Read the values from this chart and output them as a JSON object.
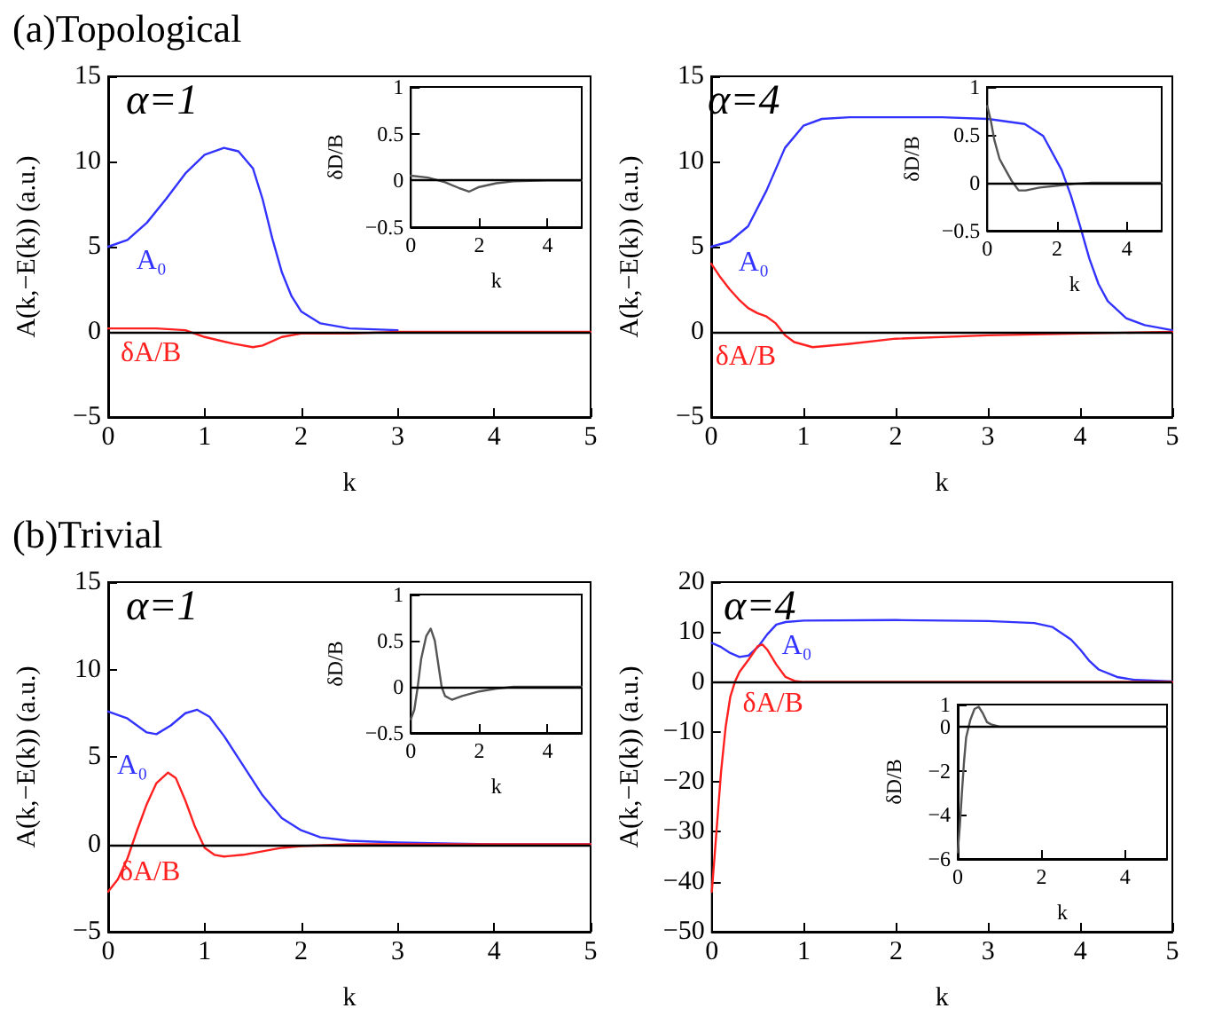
{
  "chart_data": [
    {
      "type": "line",
      "title": "(a)Topological",
      "xlabel": "k",
      "ylabel": "A(k,−E(k)) (a.u.)",
      "annotations": [
        "α=1"
      ],
      "xlim": [
        0,
        5
      ],
      "xticks": [
        0,
        1,
        2,
        3,
        4,
        5
      ],
      "ylim": [
        -5,
        15
      ],
      "yticks": [
        {
          "value": -5,
          "label": "−5"
        },
        0,
        5,
        10,
        15
      ],
      "marker": "none",
      "line_style": "solid",
      "ref_lines": [
        {
          "axis": "y",
          "value": 0,
          "color": "#000000"
        }
      ],
      "series": [
        {
          "name": "A₀",
          "color": "#3333ff",
          "x": [
            0,
            0.2,
            0.4,
            0.6,
            0.8,
            1.0,
            1.2,
            1.35,
            1.5,
            1.6,
            1.7,
            1.8,
            1.9,
            2.0,
            2.2,
            2.5,
            3
          ],
          "values": [
            5.0,
            5.4,
            6.4,
            7.8,
            9.3,
            10.4,
            10.8,
            10.6,
            9.6,
            7.8,
            5.5,
            3.5,
            2.1,
            1.2,
            0.5,
            0.2,
            0.1
          ]
        },
        {
          "name": "δA/B",
          "color": "#ff2020",
          "x": [
            0,
            0.5,
            0.8,
            1.0,
            1.3,
            1.5,
            1.6,
            1.8,
            2,
            2.5,
            3,
            5
          ],
          "values": [
            0.2,
            0.2,
            0.1,
            -0.3,
            -0.7,
            -0.9,
            -0.8,
            -0.3,
            -0.1,
            -0.1,
            0,
            0
          ]
        }
      ]
    },
    {
      "type": "line",
      "xlabel": "k",
      "ylabel": "δD/B",
      "xlim": [
        0,
        5
      ],
      "xticks": [
        0,
        2,
        4
      ],
      "ylim": [
        -0.5,
        1
      ],
      "yticks": [
        {
          "value": -0.5,
          "label": "−0.5"
        },
        0,
        0.5,
        1
      ],
      "marker": "none",
      "line_style": "solid",
      "ref_lines": [
        {
          "axis": "y",
          "value": 0,
          "color": "#000000"
        }
      ],
      "series": [
        {
          "color": "#555555",
          "x": [
            0,
            0.5,
            1.0,
            1.4,
            1.7,
            2.0,
            2.5,
            3,
            4,
            5
          ],
          "values": [
            0.05,
            0.03,
            -0.02,
            -0.08,
            -0.12,
            -0.07,
            -0.03,
            -0.01,
            0,
            0
          ]
        }
      ]
    },
    {
      "type": "line",
      "xlabel": "k",
      "ylabel": "A(k,−E(k)) (a.u.)",
      "annotations": [
        "α=4"
      ],
      "xlim": [
        0,
        5
      ],
      "xticks": [
        0,
        1,
        2,
        3,
        4,
        5
      ],
      "ylim": [
        -5,
        15
      ],
      "yticks": [
        {
          "value": -5,
          "label": "−5"
        },
        0,
        5,
        10,
        15
      ],
      "marker": "none",
      "line_style": "solid",
      "ref_lines": [
        {
          "axis": "y",
          "value": 0,
          "color": "#000000"
        }
      ],
      "series": [
        {
          "name": "A₀",
          "color": "#3333ff",
          "x": [
            0,
            0.2,
            0.4,
            0.6,
            0.8,
            1.0,
            1.2,
            1.5,
            2,
            2.5,
            3,
            3.4,
            3.6,
            3.8,
            3.9,
            4.0,
            4.1,
            4.2,
            4.3,
            4.5,
            4.7,
            5
          ],
          "values": [
            5.0,
            5.3,
            6.2,
            8.3,
            10.8,
            12.1,
            12.5,
            12.6,
            12.6,
            12.6,
            12.5,
            12.2,
            11.5,
            9.5,
            8.0,
            6.2,
            4.3,
            2.8,
            1.8,
            0.8,
            0.4,
            0.1
          ]
        },
        {
          "name": "δA/B",
          "color": "#ff2020",
          "x": [
            0,
            0.1,
            0.2,
            0.3,
            0.4,
            0.5,
            0.6,
            0.7,
            0.8,
            0.9,
            1.1,
            1.5,
            2,
            3,
            4,
            5
          ],
          "values": [
            4.0,
            3.2,
            2.5,
            1.9,
            1.4,
            1.1,
            0.9,
            0.5,
            -0.2,
            -0.6,
            -0.9,
            -0.7,
            -0.4,
            -0.2,
            -0.1,
            0
          ]
        }
      ]
    },
    {
      "type": "line",
      "xlabel": "k",
      "ylabel": "δD/B",
      "xlim": [
        0,
        5
      ],
      "xticks": [
        0,
        2,
        4
      ],
      "ylim": [
        -0.5,
        1
      ],
      "yticks": [
        {
          "value": -0.5,
          "label": "−0.5"
        },
        0,
        0.5,
        1
      ],
      "marker": "none",
      "line_style": "solid",
      "ref_lines": [
        {
          "axis": "y",
          "value": 0,
          "color": "#000000"
        }
      ],
      "series": [
        {
          "color": "#555555",
          "x": [
            0,
            0.1,
            0.2,
            0.35,
            0.5,
            0.7,
            0.9,
            1.1,
            1.5,
            2,
            2.5,
            3,
            5
          ],
          "values": [
            0.8,
            0.65,
            0.45,
            0.25,
            0.15,
            0.02,
            -0.08,
            -0.08,
            -0.05,
            -0.03,
            -0.01,
            0,
            0
          ]
        }
      ]
    },
    {
      "type": "line",
      "title": "(b)Trivial",
      "xlabel": "k",
      "ylabel": "A(k,−E(k)) (a.u.)",
      "annotations": [
        "α=1"
      ],
      "xlim": [
        0,
        5
      ],
      "xticks": [
        0,
        1,
        2,
        3,
        4,
        5
      ],
      "ylim": [
        -5,
        15
      ],
      "yticks": [
        {
          "value": -5,
          "label": "−5"
        },
        0,
        5,
        10,
        15
      ],
      "marker": "none",
      "line_style": "solid",
      "ref_lines": [
        {
          "axis": "y",
          "value": 0,
          "color": "#000000"
        }
      ],
      "series": [
        {
          "name": "A₀",
          "color": "#3333ff",
          "x": [
            0,
            0.2,
            0.4,
            0.5,
            0.65,
            0.8,
            0.92,
            1.05,
            1.2,
            1.4,
            1.6,
            1.8,
            2.0,
            2.2,
            2.5,
            3,
            4,
            5
          ],
          "values": [
            7.6,
            7.2,
            6.4,
            6.3,
            6.8,
            7.5,
            7.7,
            7.3,
            6.2,
            4.5,
            2.8,
            1.5,
            0.8,
            0.4,
            0.2,
            0.1,
            0,
            0
          ]
        },
        {
          "name": "δA/B",
          "color": "#ff2020",
          "x": [
            0,
            0.1,
            0.2,
            0.3,
            0.4,
            0.5,
            0.62,
            0.7,
            0.8,
            0.9,
            1.0,
            1.1,
            1.2,
            1.4,
            1.6,
            1.8,
            2.0,
            2.5,
            5
          ],
          "values": [
            -2.7,
            -2.0,
            -0.8,
            0.8,
            2.3,
            3.5,
            4.1,
            3.8,
            2.5,
            1.0,
            -0.2,
            -0.6,
            -0.7,
            -0.6,
            -0.4,
            -0.2,
            -0.1,
            0,
            0
          ]
        }
      ]
    },
    {
      "type": "line",
      "xlabel": "k",
      "ylabel": "δD/B",
      "xlim": [
        0,
        5
      ],
      "xticks": [
        0,
        2,
        4
      ],
      "ylim": [
        -0.5,
        1
      ],
      "yticks": [
        {
          "value": -0.5,
          "label": "−0.5"
        },
        0,
        0.5,
        1
      ],
      "marker": "none",
      "line_style": "solid",
      "ref_lines": [
        {
          "axis": "y",
          "value": 0,
          "color": "#000000"
        }
      ],
      "series": [
        {
          "color": "#555555",
          "x": [
            0,
            0.1,
            0.2,
            0.3,
            0.45,
            0.58,
            0.7,
            0.8,
            0.9,
            1.0,
            1.2,
            1.5,
            2,
            2.5,
            3,
            5
          ],
          "values": [
            -0.35,
            -0.25,
            0.0,
            0.3,
            0.55,
            0.63,
            0.5,
            0.25,
            0.0,
            -0.1,
            -0.14,
            -0.1,
            -0.05,
            -0.02,
            0,
            0
          ]
        }
      ]
    },
    {
      "type": "line",
      "xlabel": "k",
      "ylabel": "A(k,−E(k)) (a.u.)",
      "annotations": [
        "α=4"
      ],
      "xlim": [
        0,
        5
      ],
      "xticks": [
        0,
        1,
        2,
        3,
        4,
        5
      ],
      "ylim": [
        -50,
        20
      ],
      "yticks": [
        {
          "value": -50,
          "label": "−50"
        },
        {
          "value": -40,
          "label": "−40"
        },
        {
          "value": -30,
          "label": "−30"
        },
        {
          "value": -20,
          "label": "−20"
        },
        {
          "value": -10,
          "label": "−10"
        },
        0,
        10,
        20
      ],
      "marker": "none",
      "line_style": "solid",
      "ref_lines": [
        {
          "axis": "y",
          "value": 0,
          "color": "#000000"
        }
      ],
      "series": [
        {
          "name": "A₀",
          "color": "#3333ff",
          "x": [
            0,
            0.1,
            0.2,
            0.3,
            0.4,
            0.5,
            0.6,
            0.7,
            0.8,
            1,
            2,
            3,
            3.5,
            3.7,
            3.9,
            4.0,
            4.1,
            4.2,
            4.4,
            4.6,
            5
          ],
          "values": [
            7.8,
            7.0,
            5.8,
            5.0,
            5.3,
            7.0,
            9.5,
            11.5,
            12.0,
            12.3,
            12.4,
            12.2,
            11.8,
            11.0,
            8.5,
            6.5,
            4.2,
            2.5,
            1.0,
            0.4,
            0.1
          ]
        },
        {
          "name": "δA/B",
          "color": "#ff2020",
          "x": [
            0,
            0.05,
            0.1,
            0.15,
            0.2,
            0.25,
            0.3,
            0.4,
            0.5,
            0.55,
            0.6,
            0.7,
            0.8,
            0.9,
            1.0,
            5
          ],
          "values": [
            -42,
            -30,
            -18,
            -9,
            -3,
            0,
            2,
            4.5,
            7.2,
            7.5,
            6.5,
            3.5,
            1.0,
            0.2,
            0,
            0
          ]
        }
      ]
    },
    {
      "type": "line",
      "xlabel": "k",
      "ylabel": "δD/B",
      "xlim": [
        0,
        5
      ],
      "xticks": [
        0,
        2,
        4
      ],
      "ylim": [
        -6,
        1
      ],
      "yticks": [
        {
          "value": -6,
          "label": "−6"
        },
        {
          "value": -4,
          "label": "−4"
        },
        {
          "value": -2,
          "label": "−2"
        },
        0,
        1
      ],
      "marker": "none",
      "line_style": "solid",
      "ref_lines": [
        {
          "axis": "y",
          "value": 0,
          "color": "#000000"
        }
      ],
      "series": [
        {
          "color": "#555555",
          "x": [
            0,
            0.05,
            0.1,
            0.15,
            0.2,
            0.3,
            0.4,
            0.5,
            0.6,
            0.7,
            0.8,
            1,
            5
          ],
          "values": [
            -5.7,
            -4.5,
            -3.0,
            -1.6,
            -0.5,
            0.3,
            0.8,
            0.9,
            0.6,
            0.2,
            0.1,
            0,
            0
          ]
        }
      ]
    }
  ]
}
